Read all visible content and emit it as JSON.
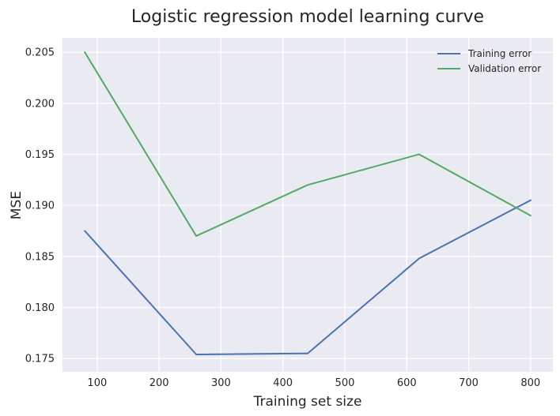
{
  "chart_data": {
    "type": "line",
    "title": "Logistic regression model learning curve",
    "xlabel": "Training set size",
    "ylabel": "MSE",
    "xlim": [
      44,
      836
    ],
    "ylim": [
      0.1737,
      0.2064
    ],
    "xticks": [
      100,
      200,
      300,
      400,
      500,
      600,
      700,
      800
    ],
    "yticks": [
      0.175,
      0.18,
      0.185,
      0.19,
      0.195,
      0.2,
      0.205
    ],
    "ytick_labels": [
      "0.175",
      "0.180",
      "0.185",
      "0.190",
      "0.195",
      "0.200",
      "0.205"
    ],
    "grid": true,
    "legend_position": "top-right",
    "x": [
      80,
      260,
      440,
      620,
      800
    ],
    "series": [
      {
        "name": "Training error",
        "color": "#4c72b0",
        "values": [
          0.1875,
          0.1754,
          0.1755,
          0.1848,
          0.1905
        ]
      },
      {
        "name": "Validation error",
        "color": "#55a868",
        "values": [
          0.205,
          0.187,
          0.192,
          0.195,
          0.189
        ]
      }
    ]
  }
}
